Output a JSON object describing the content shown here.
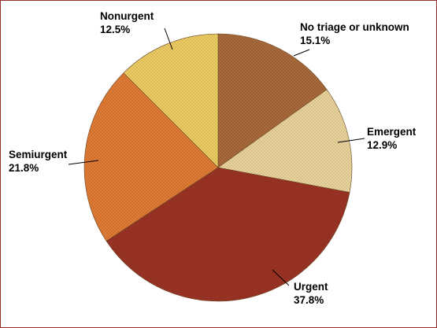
{
  "chart_data": {
    "type": "pie",
    "title": "",
    "start_angle_deg": 0,
    "direction": "clockwise",
    "slices": [
      {
        "name": "No triage or unknown",
        "value": 15.1,
        "value_label": "15.1%",
        "color": "#a8693a"
      },
      {
        "name": "Emergent",
        "value": 12.9,
        "value_label": "12.9%",
        "color": "#e8d29a"
      },
      {
        "name": "Urgent",
        "value": 37.8,
        "value_label": "37.8%",
        "color": "#9b3324"
      },
      {
        "name": "Semiurgent",
        "value": 21.8,
        "value_label": "21.8%",
        "color": "#df7a34"
      },
      {
        "name": "Nonurgent",
        "value": 12.5,
        "value_label": "12.5%",
        "color": "#eccb63"
      }
    ]
  }
}
